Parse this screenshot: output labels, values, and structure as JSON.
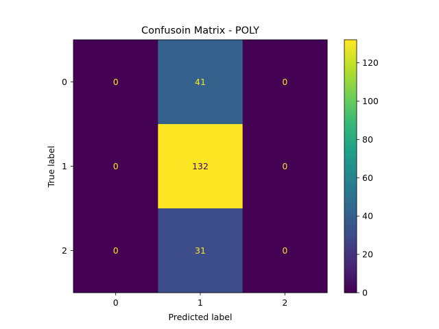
{
  "chart_data": {
    "type": "heatmap",
    "title": "Confusoin Matrix - POLY",
    "xlabel": "Predicted label",
    "ylabel": "True label",
    "x_categories": [
      "0",
      "1",
      "2"
    ],
    "y_categories": [
      "0",
      "1",
      "2"
    ],
    "values": [
      [
        0,
        41,
        0
      ],
      [
        0,
        132,
        0
      ],
      [
        0,
        31,
        0
      ]
    ],
    "colormap": "viridis",
    "colorbar": {
      "range": [
        0,
        132
      ],
      "ticks": [
        0,
        20,
        40,
        60,
        80,
        100,
        120
      ]
    },
    "text_color_dark": "#fde725",
    "text_color_light": "#440154"
  }
}
